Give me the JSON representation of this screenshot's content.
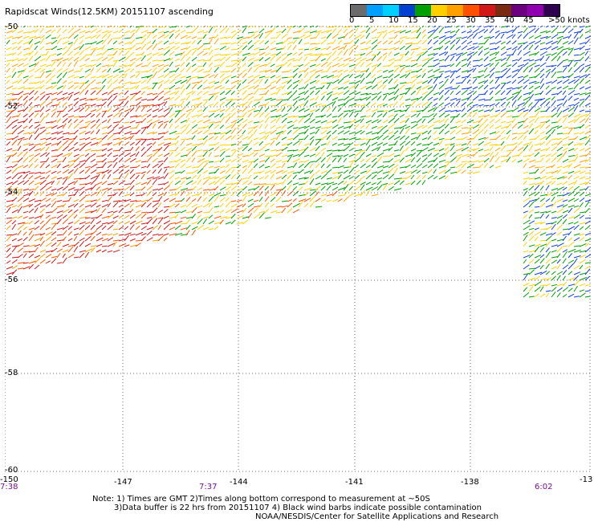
{
  "title": "Rapidscat Winds(12.5KM) 20151107 ascending",
  "colorbar": {
    "colors": [
      "#6b6b6b",
      "#00a0ff",
      "#00c8ff",
      "#0040d0",
      "#00a000",
      "#ffd000",
      "#ffa000",
      "#ff5000",
      "#d01818",
      "#7a2a10",
      "#6a0080",
      "#9000b0",
      "#300050"
    ],
    "labels": [
      "0",
      "5",
      "10",
      "15",
      "20",
      "25",
      "30",
      "35",
      "40",
      "45",
      ">50 knots"
    ]
  },
  "map": {
    "lat_labels": [
      "-50",
      "-52",
      "-54",
      "-56",
      "-58",
      "-60"
    ],
    "lon_labels": [
      "-150",
      "-147",
      "-144",
      "-141",
      "-138",
      "-13"
    ],
    "time_labels": [
      "7:38",
      "7:37",
      "6:02"
    ]
  },
  "notes": [
    "Note: 1) Times are GMT 2)Times along bottom correspond to measurement at ~50S",
    "3)Data buffer is 22 hrs from 20151107 4) Black wind barbs indicate possible contamination",
    "NOAA/NESDIS/Center for Satellite Applications and Research"
  ]
}
